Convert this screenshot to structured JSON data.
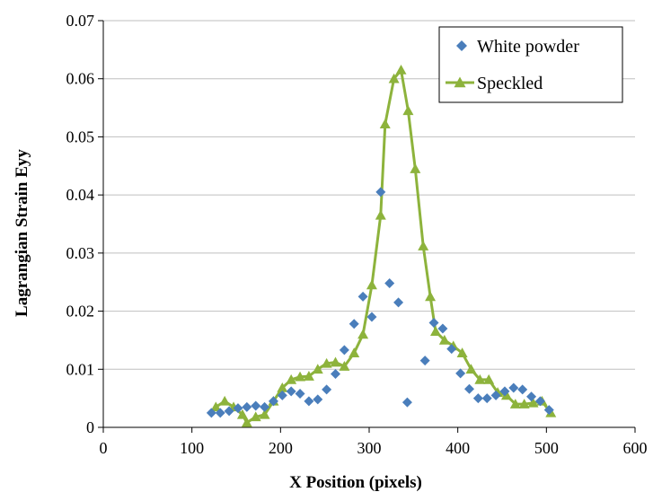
{
  "chart_data": {
    "type": "scatter",
    "xlabel": "X Position (pixels)",
    "ylabel": "Lagrangian Strain Eyy",
    "xlim": [
      0,
      600
    ],
    "ylim": [
      0,
      0.07
    ],
    "x_ticks": [
      "0",
      "100",
      "200",
      "300",
      "400",
      "500",
      "600"
    ],
    "y_ticks": [
      "0",
      "0.01",
      "0.02",
      "0.03",
      "0.04",
      "0.05",
      "0.06",
      "0.07"
    ],
    "grid": "horizontal",
    "legend_position": "top-right",
    "colors": {
      "white_powder": "#4a7ebb",
      "speckled": "#8db33c",
      "grid": "#bfbfbf",
      "axis": "#000000"
    },
    "series": [
      {
        "name": "White powder",
        "style": "markers",
        "marker": "diamond",
        "points": [
          [
            122,
            0.0025
          ],
          [
            132,
            0.0025
          ],
          [
            142,
            0.0028
          ],
          [
            152,
            0.0033
          ],
          [
            162,
            0.0035
          ],
          [
            172,
            0.0037
          ],
          [
            182,
            0.0035
          ],
          [
            192,
            0.0045
          ],
          [
            202,
            0.0055
          ],
          [
            212,
            0.0062
          ],
          [
            222,
            0.0058
          ],
          [
            232,
            0.0045
          ],
          [
            242,
            0.0048
          ],
          [
            252,
            0.0065
          ],
          [
            262,
            0.0092
          ],
          [
            272,
            0.0133
          ],
          [
            283,
            0.0178
          ],
          [
            293,
            0.0225
          ],
          [
            303,
            0.019
          ],
          [
            313,
            0.0405
          ],
          [
            323,
            0.0248
          ],
          [
            333,
            0.0215
          ],
          [
            343,
            0.0043
          ],
          [
            363,
            0.0115
          ],
          [
            373,
            0.018
          ],
          [
            383,
            0.017
          ],
          [
            393,
            0.0135
          ],
          [
            403,
            0.0093
          ],
          [
            413,
            0.0066
          ],
          [
            423,
            0.005
          ],
          [
            433,
            0.005
          ],
          [
            443,
            0.0055
          ],
          [
            453,
            0.0062
          ],
          [
            463,
            0.0068
          ],
          [
            473,
            0.0065
          ],
          [
            483,
            0.0053
          ],
          [
            493,
            0.0045
          ],
          [
            503,
            0.003
          ]
        ]
      },
      {
        "name": "Speckled",
        "style": "line-markers",
        "marker": "triangle",
        "points": [
          [
            127,
            0.0035
          ],
          [
            137,
            0.0045
          ],
          [
            147,
            0.0035
          ],
          [
            157,
            0.0022
          ],
          [
            162,
            0.0008
          ],
          [
            172,
            0.0018
          ],
          [
            182,
            0.0022
          ],
          [
            192,
            0.0045
          ],
          [
            202,
            0.0068
          ],
          [
            212,
            0.0082
          ],
          [
            222,
            0.0087
          ],
          [
            232,
            0.0088
          ],
          [
            242,
            0.01
          ],
          [
            252,
            0.011
          ],
          [
            262,
            0.0112
          ],
          [
            272,
            0.0105
          ],
          [
            283,
            0.0128
          ],
          [
            293,
            0.016
          ],
          [
            303,
            0.0245
          ],
          [
            313,
            0.0365
          ],
          [
            318,
            0.0522
          ],
          [
            328,
            0.06
          ],
          [
            336,
            0.0615
          ],
          [
            344,
            0.0545
          ],
          [
            352,
            0.0445
          ],
          [
            361,
            0.0312
          ],
          [
            369,
            0.0225
          ],
          [
            375,
            0.0165
          ],
          [
            385,
            0.015
          ],
          [
            395,
            0.014
          ],
          [
            405,
            0.0128
          ],
          [
            415,
            0.01
          ],
          [
            425,
            0.0082
          ],
          [
            435,
            0.0082
          ],
          [
            445,
            0.006
          ],
          [
            455,
            0.0055
          ],
          [
            465,
            0.004
          ],
          [
            475,
            0.004
          ],
          [
            485,
            0.0042
          ],
          [
            495,
            0.0045
          ],
          [
            505,
            0.0025
          ]
        ]
      }
    ]
  }
}
